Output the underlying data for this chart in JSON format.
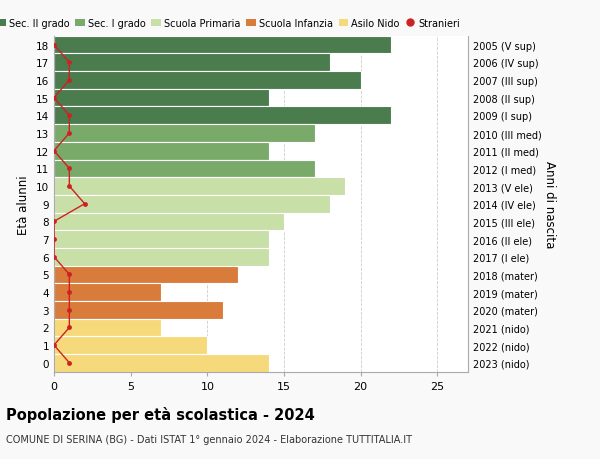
{
  "ages": [
    18,
    17,
    16,
    15,
    14,
    13,
    12,
    11,
    10,
    9,
    8,
    7,
    6,
    5,
    4,
    3,
    2,
    1,
    0
  ],
  "bar_values": [
    22,
    18,
    20,
    14,
    22,
    17,
    14,
    17,
    19,
    18,
    15,
    14,
    14,
    12,
    7,
    11,
    7,
    10,
    14
  ],
  "bar_colors": [
    "#4a7c4e",
    "#4a7c4e",
    "#4a7c4e",
    "#4a7c4e",
    "#4a7c4e",
    "#7aaa6a",
    "#7aaa6a",
    "#7aaa6a",
    "#c8dfa8",
    "#c8dfa8",
    "#c8dfa8",
    "#c8dfa8",
    "#c8dfa8",
    "#d97b3a",
    "#d97b3a",
    "#d97b3a",
    "#f5d97a",
    "#f5d97a",
    "#f5d97a"
  ],
  "stranieri_values": [
    0,
    1,
    1,
    0,
    1,
    1,
    0,
    1,
    1,
    2,
    0,
    0,
    0,
    1,
    1,
    1,
    1,
    0,
    1
  ],
  "right_labels": [
    "2005 (V sup)",
    "2006 (IV sup)",
    "2007 (III sup)",
    "2008 (II sup)",
    "2009 (I sup)",
    "2010 (III med)",
    "2011 (II med)",
    "2012 (I med)",
    "2013 (V ele)",
    "2014 (IV ele)",
    "2015 (III ele)",
    "2016 (II ele)",
    "2017 (I ele)",
    "2018 (mater)",
    "2019 (mater)",
    "2020 (mater)",
    "2021 (nido)",
    "2022 (nido)",
    "2023 (nido)"
  ],
  "legend_labels": [
    "Sec. II grado",
    "Sec. I grado",
    "Scuola Primaria",
    "Scuola Infanzia",
    "Asilo Nido",
    "Stranieri"
  ],
  "legend_colors": [
    "#4a7c4e",
    "#7aaa6a",
    "#c8dfa8",
    "#d97b3a",
    "#f5d97a",
    "#cc2222"
  ],
  "ylabel": "Età alunni",
  "right_ylabel": "Anni di nascita",
  "title": "Popolazione per età scolastica - 2024",
  "subtitle": "COMUNE DI SERINA (BG) - Dati ISTAT 1° gennaio 2024 - Elaborazione TUTTITALIA.IT",
  "xlim": [
    0,
    27
  ],
  "xticks": [
    0,
    5,
    10,
    15,
    20,
    25
  ],
  "background_color": "#f9f9f9",
  "grid_color": "#cccccc",
  "stranieri_color": "#cc2222"
}
